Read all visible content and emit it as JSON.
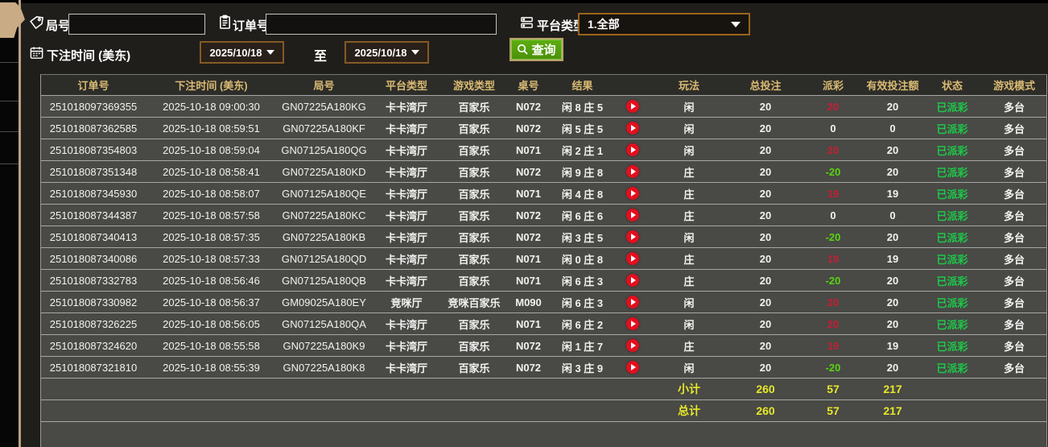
{
  "form": {
    "game_no_label": "局号",
    "game_no_value": "",
    "order_no_label": "订单号",
    "order_no_value": "",
    "platform_type_label": "平台类型",
    "platform_type_value": "1.全部",
    "bet_time_label": "下注时间 (美东)",
    "date_from": "2025/10/18",
    "to_label": "至",
    "date_to": "2025/10/18",
    "query_label": "查询"
  },
  "table": {
    "headers": [
      "订单号",
      "下注时间 (美东)",
      "局号",
      "平台类型",
      "游戏类型",
      "桌号",
      "结果",
      "",
      "玩法",
      "总投注",
      "派彩",
      "有效投注额",
      "状态",
      "游戏模式"
    ],
    "rows": [
      {
        "order": "251018097369355",
        "time": "2025-10-18 09:00:30",
        "game": "GN07225A180KG",
        "platform": "卡卡湾厅",
        "game_type": "百家乐",
        "table_no": "N072",
        "result": "闲 8 庄 5",
        "bet": "闲",
        "total_bet": "20",
        "payout": "20",
        "valid": "20",
        "status": "已派彩",
        "mode": "多台"
      },
      {
        "order": "251018087362585",
        "time": "2025-10-18 08:59:51",
        "game": "GN07225A180KF",
        "platform": "卡卡湾厅",
        "game_type": "百家乐",
        "table_no": "N072",
        "result": "闲 5 庄 5",
        "bet": "闲",
        "total_bet": "20",
        "payout": "0",
        "valid": "0",
        "status": "已派彩",
        "mode": "多台"
      },
      {
        "order": "251018087354803",
        "time": "2025-10-18 08:59:04",
        "game": "GN07125A180QG",
        "platform": "卡卡湾厅",
        "game_type": "百家乐",
        "table_no": "N071",
        "result": "闲 2 庄 1",
        "bet": "闲",
        "total_bet": "20",
        "payout": "20",
        "valid": "20",
        "status": "已派彩",
        "mode": "多台"
      },
      {
        "order": "251018087351348",
        "time": "2025-10-18 08:58:41",
        "game": "GN07225A180KD",
        "platform": "卡卡湾厅",
        "game_type": "百家乐",
        "table_no": "N072",
        "result": "闲 9 庄 8",
        "bet": "庄",
        "total_bet": "20",
        "payout": "-20",
        "valid": "20",
        "status": "已派彩",
        "mode": "多台"
      },
      {
        "order": "251018087345930",
        "time": "2025-10-18 08:58:07",
        "game": "GN07125A180QE",
        "platform": "卡卡湾厅",
        "game_type": "百家乐",
        "table_no": "N071",
        "result": "闲 4 庄 8",
        "bet": "庄",
        "total_bet": "20",
        "payout": "19",
        "valid": "19",
        "status": "已派彩",
        "mode": "多台"
      },
      {
        "order": "251018087344387",
        "time": "2025-10-18 08:57:58",
        "game": "GN07225A180KC",
        "platform": "卡卡湾厅",
        "game_type": "百家乐",
        "table_no": "N072",
        "result": "闲 6 庄 6",
        "bet": "庄",
        "total_bet": "20",
        "payout": "0",
        "valid": "0",
        "status": "已派彩",
        "mode": "多台"
      },
      {
        "order": "251018087340413",
        "time": "2025-10-18 08:57:35",
        "game": "GN07225A180KB",
        "platform": "卡卡湾厅",
        "game_type": "百家乐",
        "table_no": "N072",
        "result": "闲 3 庄 5",
        "bet": "闲",
        "total_bet": "20",
        "payout": "-20",
        "valid": "20",
        "status": "已派彩",
        "mode": "多台"
      },
      {
        "order": "251018087340086",
        "time": "2025-10-18 08:57:33",
        "game": "GN07125A180QD",
        "platform": "卡卡湾厅",
        "game_type": "百家乐",
        "table_no": "N071",
        "result": "闲 0 庄 8",
        "bet": "庄",
        "total_bet": "20",
        "payout": "19",
        "valid": "19",
        "status": "已派彩",
        "mode": "多台"
      },
      {
        "order": "251018087332783",
        "time": "2025-10-18 08:56:46",
        "game": "GN07125A180QB",
        "platform": "卡卡湾厅",
        "game_type": "百家乐",
        "table_no": "N071",
        "result": "闲 6 庄 3",
        "bet": "庄",
        "total_bet": "20",
        "payout": "-20",
        "valid": "20",
        "status": "已派彩",
        "mode": "多台"
      },
      {
        "order": "251018087330982",
        "time": "2025-10-18 08:56:37",
        "game": "GM09025A180EY",
        "platform": "竞咪厅",
        "game_type": "竞咪百家乐",
        "table_no": "M090",
        "result": "闲 6 庄 3",
        "bet": "闲",
        "total_bet": "20",
        "payout": "20",
        "valid": "20",
        "status": "已派彩",
        "mode": "多台"
      },
      {
        "order": "251018087326225",
        "time": "2025-10-18 08:56:05",
        "game": "GN07125A180QA",
        "platform": "卡卡湾厅",
        "game_type": "百家乐",
        "table_no": "N071",
        "result": "闲 6 庄 2",
        "bet": "闲",
        "total_bet": "20",
        "payout": "20",
        "valid": "20",
        "status": "已派彩",
        "mode": "多台"
      },
      {
        "order": "251018087324620",
        "time": "2025-10-18 08:55:58",
        "game": "GN07225A180K9",
        "platform": "卡卡湾厅",
        "game_type": "百家乐",
        "table_no": "N072",
        "result": "闲 1 庄 7",
        "bet": "庄",
        "total_bet": "20",
        "payout": "19",
        "valid": "19",
        "status": "已派彩",
        "mode": "多台"
      },
      {
        "order": "251018087321810",
        "time": "2025-10-18 08:55:39",
        "game": "GN07225A180K8",
        "platform": "卡卡湾厅",
        "game_type": "百家乐",
        "table_no": "N072",
        "result": "闲 3 庄 9",
        "bet": "闲",
        "total_bet": "20",
        "payout": "-20",
        "valid": "20",
        "status": "已派彩",
        "mode": "多台"
      }
    ],
    "summary_rows": [
      {
        "label": "小计",
        "total_bet": "260",
        "payout": "57",
        "valid": "217"
      },
      {
        "label": "总计",
        "total_bet": "260",
        "payout": "57",
        "valid": "217"
      }
    ]
  },
  "icons": {
    "game_no": "tag-icon",
    "order_no": "clipboard-icon",
    "platform": "server-list-icon",
    "bet_time": "calendar-icon",
    "query": "search-icon",
    "result_row": "play-icon",
    "dropdown": "caret-down-icon"
  },
  "colors": {
    "panel_bg": "#201e1b",
    "table_row_bg": "#494946",
    "table_header_bg": "#2c2c29",
    "header_text": "#d9ba72",
    "payout_positive": "#c41f33",
    "payout_negative": "#57d411",
    "status_paid": "#1dc849",
    "summary_yellow": "#e6e828",
    "query_button_green": "#54a30d",
    "accent_tan": "#c9ab85",
    "select_border": "#9c6419",
    "date_border": "#855a26",
    "play_button_red": "#e30f1e"
  }
}
